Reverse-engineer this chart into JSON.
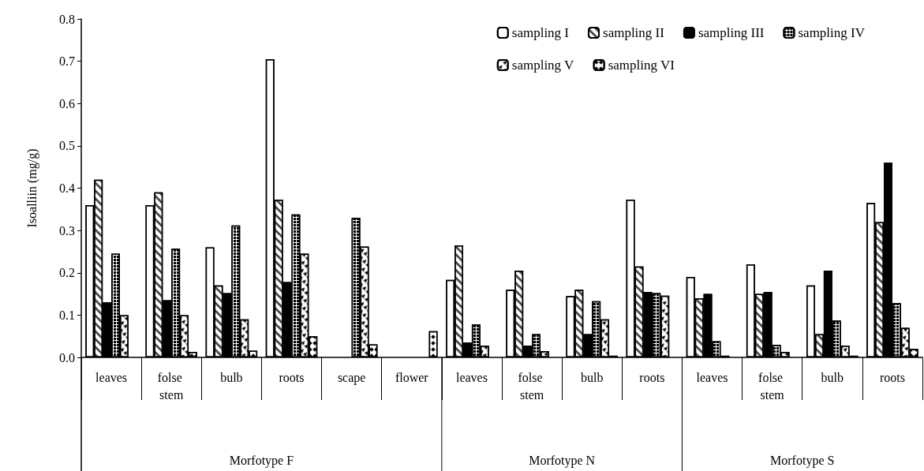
{
  "chart_data": {
    "type": "bar",
    "ylabel": "Isoalliin (mg/g)",
    "categories": [
      "leaves",
      "folse stem",
      "bulb",
      "roots",
      "scape",
      "flower",
      "leaves",
      "folse stem",
      "bulb",
      "roots",
      "leaves",
      "folse stem",
      "bulb",
      "roots"
    ],
    "series": [
      {
        "name": "sampling I",
        "color": "#ffffff",
        "values": [
          0.36,
          0.36,
          0.26,
          0.705,
          null,
          null,
          0.183,
          0.16,
          0.145,
          0.373,
          0.19,
          0.22,
          0.17,
          0.365
        ]
      },
      {
        "name": "sampling II",
        "color": "#ffffff",
        "values": [
          0.42,
          0.39,
          0.17,
          0.373,
          null,
          null,
          0.265,
          0.205,
          0.16,
          0.215,
          0.14,
          0.15,
          0.055,
          0.32
        ]
      },
      {
        "name": "sampling III",
        "color": "#000000",
        "values": [
          0.13,
          0.135,
          0.152,
          0.178,
          null,
          null,
          0.035,
          0.028,
          0.055,
          0.155,
          0.15,
          0.155,
          0.205,
          0.46
        ]
      },
      {
        "name": "sampling IV",
        "color": "#ffffff",
        "values": [
          0.245,
          0.257,
          0.312,
          0.338,
          0.33,
          null,
          0.078,
          0.055,
          0.133,
          0.152,
          0.038,
          0.03,
          0.087,
          0.128
        ]
      },
      {
        "name": "sampling V",
        "color": "#ffffff",
        "values": [
          0.1,
          0.1,
          0.09,
          0.245,
          0.262,
          null,
          0.028,
          0.015,
          0.09,
          0.146,
          0.004,
          0.013,
          0.028,
          0.07
        ]
      },
      {
        "name": "sampling VI",
        "color": "#ffffff",
        "values": [
          null,
          0.013,
          0.016,
          0.05,
          0.031,
          0.062,
          null,
          null,
          0.004,
          null,
          null,
          null,
          0.004,
          0.02
        ]
      }
    ],
    "ylim": [
      0,
      0.8
    ],
    "yticks": [
      {
        "value": 0,
        "label": "0.0"
      },
      {
        "value": 0.1,
        "label": "0.1"
      },
      {
        "value": 0.2,
        "label": "0.2"
      },
      {
        "value": 0.3,
        "label": "0.3"
      },
      {
        "value": 0.4,
        "label": "0.4"
      },
      {
        "value": 0.5,
        "label": "0.5"
      },
      {
        "value": 0.6,
        "label": "0.6"
      },
      {
        "value": 0.7,
        "label": "0.7"
      },
      {
        "value": 0.8,
        "label": "0.8"
      }
    ],
    "annotations": [
      "Morfotype F",
      "Morfotype N",
      "Morfotype S"
    ],
    "legend": "top right",
    "grid": false
  }
}
